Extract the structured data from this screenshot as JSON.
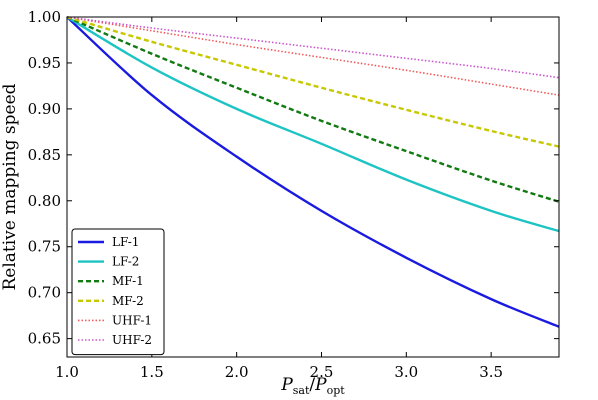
{
  "chart_data": {
    "type": "line",
    "xlabel": "P_sat/P_opt",
    "xlabel_parts": {
      "main1": "P",
      "sub1": "sat",
      "slash": "/",
      "main2": "P",
      "sub2": "opt"
    },
    "ylabel": "Relative mapping speed",
    "xlim": [
      1.0,
      3.9
    ],
    "ylim": [
      0.63,
      1.0
    ],
    "xticks": [
      1.0,
      1.5,
      2.0,
      2.5,
      3.0,
      3.5
    ],
    "xtick_labels": [
      "1.0",
      "1.5",
      "2.0",
      "2.5",
      "3.0",
      "3.5"
    ],
    "yticks": [
      0.65,
      0.7,
      0.75,
      0.8,
      0.85,
      0.9,
      0.95,
      1.0
    ],
    "ytick_labels": [
      "0.65",
      "0.70",
      "0.75",
      "0.80",
      "0.85",
      "0.90",
      "0.95",
      "1.00"
    ],
    "grid": false,
    "legend_position": "bottom-left",
    "series": [
      {
        "name": "LF-1",
        "color": "#1a1ae0",
        "style": "solid",
        "x": [
          1.0,
          1.5,
          2.0,
          2.5,
          3.0,
          3.5,
          3.9
        ],
        "values": [
          1.0,
          0.915,
          0.848,
          0.789,
          0.738,
          0.693,
          0.663
        ]
      },
      {
        "name": "LF-2",
        "color": "#1ec4c4",
        "style": "solid",
        "x": [
          1.0,
          1.5,
          2.0,
          2.5,
          3.0,
          3.5,
          3.9
        ],
        "values": [
          1.0,
          0.945,
          0.9,
          0.862,
          0.823,
          0.789,
          0.767
        ]
      },
      {
        "name": "MF-1",
        "color": "#127a12",
        "style": "dashed",
        "x": [
          1.0,
          1.5,
          2.0,
          2.5,
          3.0,
          3.5,
          3.9
        ],
        "values": [
          1.0,
          0.96,
          0.923,
          0.887,
          0.854,
          0.822,
          0.799
        ]
      },
      {
        "name": "MF-2",
        "color": "#c8c800",
        "style": "dashed",
        "x": [
          1.0,
          1.5,
          2.0,
          2.5,
          3.0,
          3.5,
          3.9
        ],
        "values": [
          1.0,
          0.973,
          0.948,
          0.923,
          0.899,
          0.876,
          0.859
        ]
      },
      {
        "name": "UHF-1",
        "color": "#f25a5a",
        "style": "dotted",
        "x": [
          1.0,
          1.5,
          2.0,
          2.5,
          3.0,
          3.5,
          3.9
        ],
        "values": [
          1.0,
          0.985,
          0.97,
          0.956,
          0.942,
          0.927,
          0.915
        ]
      },
      {
        "name": "UHF-2",
        "color": "#cc55cc",
        "style": "dotted",
        "x": [
          1.0,
          1.5,
          2.0,
          2.5,
          3.0,
          3.5,
          3.9
        ],
        "values": [
          1.0,
          0.988,
          0.977,
          0.966,
          0.955,
          0.944,
          0.934
        ]
      }
    ]
  }
}
